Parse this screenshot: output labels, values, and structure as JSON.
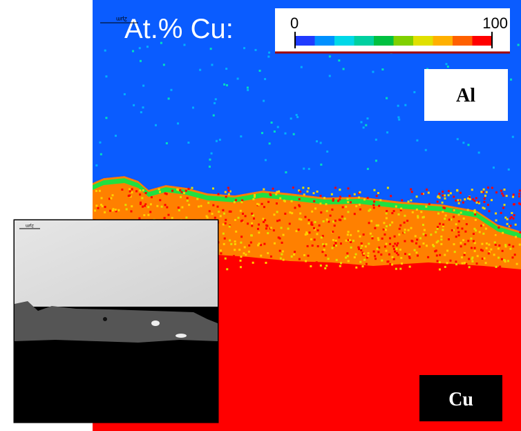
{
  "colorbar": {
    "label": "At.% Cu:",
    "min_label": "0",
    "max_label": "100"
  },
  "labels": {
    "top": "Al",
    "bottom": "Cu"
  },
  "scale_bars": {
    "map": "2µm",
    "inset": "2µm"
  }
}
